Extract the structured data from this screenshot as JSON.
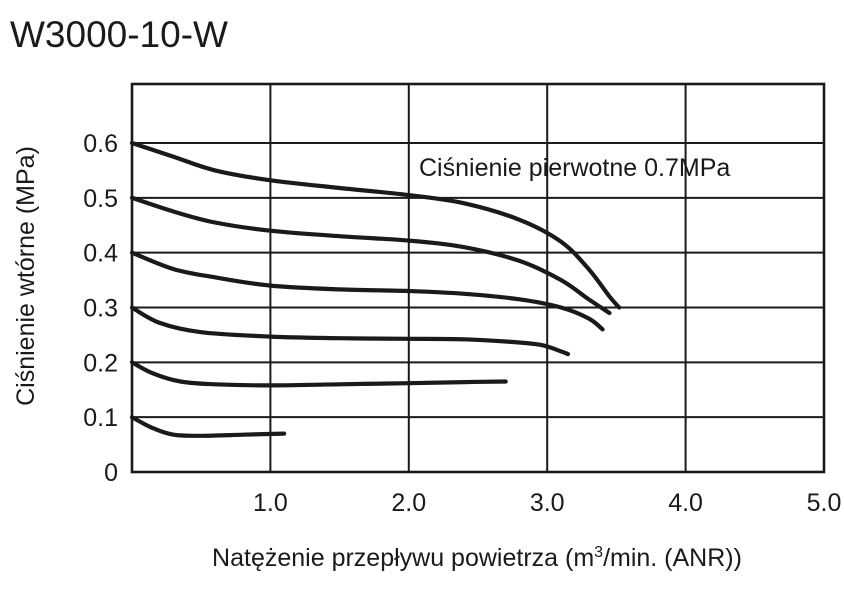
{
  "chart_data": {
    "type": "line",
    "title": "W3000-10-W",
    "xlabel_main": "Natężenie przepływu powietrza (m",
    "xlabel_sup": "3",
    "xlabel_tail": "/min. (ANR))",
    "ylabel": "Ciśnienie wtórne  (MPa)",
    "annotation": "Ciśnienie pierwotne 0.7MPa",
    "xlim": [
      0,
      5.0
    ],
    "ylim": [
      0,
      0.7
    ],
    "x_ticks": [
      {
        "value": 1.0,
        "label": "1.0"
      },
      {
        "value": 2.0,
        "label": "2.0"
      },
      {
        "value": 3.0,
        "label": "3.0"
      },
      {
        "value": 4.0,
        "label": "4.0"
      },
      {
        "value": 5.0,
        "label": "5.0"
      }
    ],
    "y_ticks": [
      {
        "value": 0,
        "label": "0"
      },
      {
        "value": 0.1,
        "label": "0.1"
      },
      {
        "value": 0.2,
        "label": "0.2"
      },
      {
        "value": 0.3,
        "label": "0.3"
      },
      {
        "value": 0.4,
        "label": "0.4"
      },
      {
        "value": 0.5,
        "label": "0.5"
      },
      {
        "value": 0.6,
        "label": "0.6"
      }
    ],
    "grid": true,
    "line_color": "#1a1a1a",
    "series": [
      {
        "points": [
          [
            0.0,
            0.6
          ],
          [
            0.3,
            0.575
          ],
          [
            0.6,
            0.55
          ],
          [
            1.0,
            0.532
          ],
          [
            1.5,
            0.518
          ],
          [
            2.0,
            0.505
          ],
          [
            2.4,
            0.49
          ],
          [
            2.8,
            0.46
          ],
          [
            3.1,
            0.42
          ],
          [
            3.3,
            0.37
          ],
          [
            3.45,
            0.32
          ],
          [
            3.52,
            0.3
          ]
        ]
      },
      {
        "points": [
          [
            0.0,
            0.5
          ],
          [
            0.3,
            0.475
          ],
          [
            0.6,
            0.455
          ],
          [
            1.0,
            0.44
          ],
          [
            1.5,
            0.43
          ],
          [
            2.0,
            0.422
          ],
          [
            2.4,
            0.41
          ],
          [
            2.8,
            0.385
          ],
          [
            3.1,
            0.35
          ],
          [
            3.3,
            0.315
          ],
          [
            3.45,
            0.29
          ]
        ]
      },
      {
        "points": [
          [
            0.0,
            0.4
          ],
          [
            0.3,
            0.37
          ],
          [
            0.6,
            0.355
          ],
          [
            1.0,
            0.34
          ],
          [
            1.5,
            0.333
          ],
          [
            2.0,
            0.33
          ],
          [
            2.4,
            0.325
          ],
          [
            2.8,
            0.315
          ],
          [
            3.1,
            0.3
          ],
          [
            3.3,
            0.28
          ],
          [
            3.4,
            0.26
          ]
        ]
      },
      {
        "points": [
          [
            0.0,
            0.3
          ],
          [
            0.2,
            0.272
          ],
          [
            0.5,
            0.255
          ],
          [
            1.0,
            0.247
          ],
          [
            1.5,
            0.244
          ],
          [
            2.0,
            0.243
          ],
          [
            2.4,
            0.242
          ],
          [
            2.7,
            0.238
          ],
          [
            2.95,
            0.232
          ],
          [
            3.1,
            0.22
          ],
          [
            3.15,
            0.215
          ]
        ]
      },
      {
        "points": [
          [
            0.0,
            0.2
          ],
          [
            0.15,
            0.18
          ],
          [
            0.35,
            0.165
          ],
          [
            0.6,
            0.16
          ],
          [
            1.0,
            0.158
          ],
          [
            1.5,
            0.16
          ],
          [
            2.0,
            0.162
          ],
          [
            2.4,
            0.164
          ],
          [
            2.7,
            0.165
          ]
        ]
      },
      {
        "points": [
          [
            0.0,
            0.1
          ],
          [
            0.15,
            0.08
          ],
          [
            0.3,
            0.068
          ],
          [
            0.5,
            0.066
          ],
          [
            0.8,
            0.068
          ],
          [
            1.1,
            0.07
          ]
        ]
      }
    ]
  }
}
